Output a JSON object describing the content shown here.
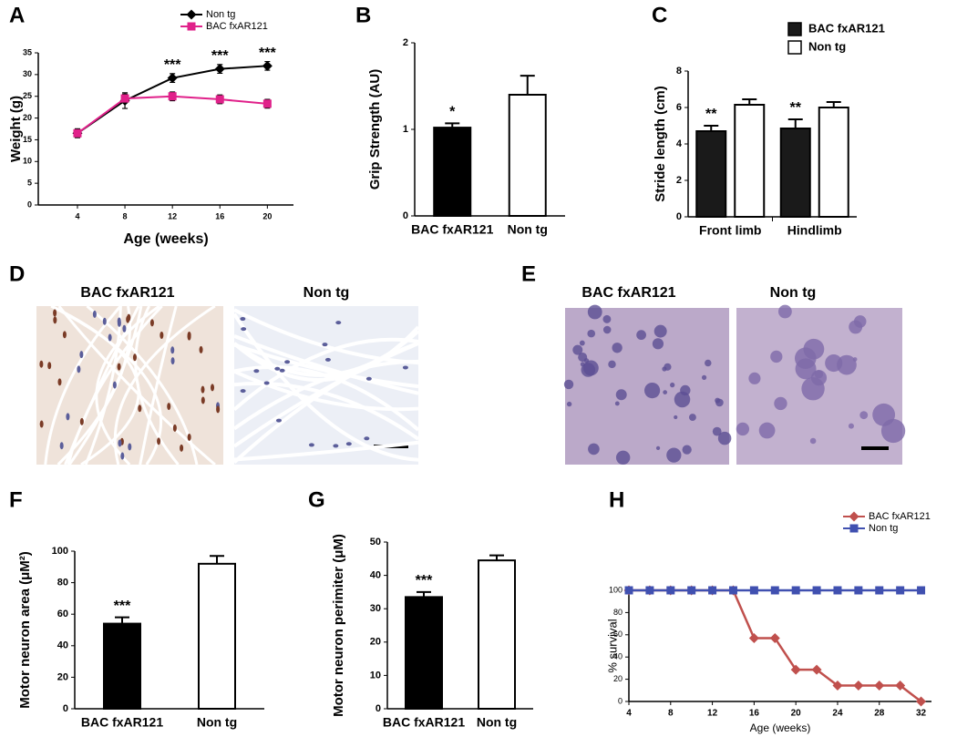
{
  "chart_data": [
    {
      "panel": "A",
      "type": "line",
      "xlabel": "Age (weeks)",
      "ylabel": "Weight (g)",
      "x": [
        4,
        8,
        12,
        16,
        20
      ],
      "xlim": [
        0.7,
        22.2
      ],
      "xticks": [
        4,
        8,
        12,
        16,
        20
      ],
      "ylim": [
        0,
        35
      ],
      "yticks": [
        0,
        5,
        10,
        15,
        20,
        25,
        30,
        35
      ],
      "series": [
        {
          "name": "Non tg",
          "color": "#000000",
          "marker": "diamond",
          "values": [
            16.5,
            24,
            29.2,
            31.3,
            32
          ],
          "errors": [
            1,
            1.8,
            1,
            1,
            1
          ]
        },
        {
          "name": "BAC fxAR121",
          "color": "#e0218a",
          "marker": "square",
          "values": [
            16.5,
            24.5,
            25,
            24.3,
            23.3
          ],
          "errors": [
            1,
            1,
            1,
            1,
            1
          ]
        }
      ],
      "significance": [
        null,
        null,
        "***",
        "***",
        "***"
      ]
    },
    {
      "panel": "B",
      "type": "bar",
      "ylabel": "Grip Strength (AU)",
      "categories": [
        "BAC fxAR121",
        "Non tg"
      ],
      "values": [
        1.02,
        1.4
      ],
      "errors": [
        0.05,
        0.22
      ],
      "colors": [
        "#000000",
        "#ffffff"
      ],
      "significance": [
        "*",
        null
      ],
      "ylim": [
        0,
        2
      ],
      "yticks": [
        0,
        1,
        2
      ]
    },
    {
      "panel": "C",
      "type": "bar",
      "ylabel": "Stride length (cm)",
      "categories": [
        "Front limb",
        "Hindlimb"
      ],
      "series": [
        {
          "name": "BAC fxAR121",
          "color": "#1a1a1a",
          "values": [
            4.7,
            4.85
          ],
          "errors": [
            0.3,
            0.5
          ],
          "significance": [
            "**",
            "**"
          ]
        },
        {
          "name": "Non tg",
          "color": "#ffffff",
          "values": [
            6.15,
            6.0
          ],
          "errors": [
            0.3,
            0.3
          ]
        }
      ],
      "ylim": [
        0,
        8
      ],
      "yticks": [
        0,
        2,
        4,
        6,
        8
      ]
    },
    {
      "panel": "F",
      "type": "bar",
      "ylabel": "Motor neuron area (μM²)",
      "categories": [
        "BAC fxAR121",
        "Non tg"
      ],
      "values": [
        54,
        92
      ],
      "errors": [
        4,
        5
      ],
      "colors": [
        "#000000",
        "#ffffff"
      ],
      "significance": [
        "***",
        null
      ],
      "ylim": [
        0,
        100
      ],
      "yticks": [
        0,
        20,
        40,
        60,
        80,
        100
      ]
    },
    {
      "panel": "G",
      "type": "bar",
      "ylabel": "Motor neuron perimiter (μM)",
      "categories": [
        "BAC fxAR121",
        "Non tg"
      ],
      "values": [
        33.5,
        44.5
      ],
      "errors": [
        1.5,
        1.5
      ],
      "colors": [
        "#000000",
        "#ffffff"
      ],
      "significance": [
        "***",
        null
      ],
      "ylim": [
        0,
        50
      ],
      "yticks": [
        0,
        10,
        20,
        30,
        40,
        50
      ]
    },
    {
      "panel": "H",
      "type": "line",
      "xlabel": "Age (weeks)",
      "ylabel": "% survival",
      "x": [
        4,
        6,
        8,
        10,
        12,
        14,
        16,
        18,
        20,
        22,
        24,
        26,
        28,
        30,
        32
      ],
      "xlim": [
        4,
        33
      ],
      "xticks": [
        4,
        8,
        12,
        16,
        20,
        24,
        28,
        32
      ],
      "ylim": [
        0,
        100
      ],
      "yticks": [
        0,
        20,
        40,
        60,
        80,
        100
      ],
      "series": [
        {
          "name": "BAC fxAR121",
          "color": "#c0504d",
          "marker": "diamond",
          "values": [
            100,
            100,
            100,
            100,
            100,
            100,
            57,
            57,
            28.6,
            28.6,
            14.3,
            14.3,
            14.3,
            14.3,
            0
          ]
        },
        {
          "name": "Non tg",
          "color": "#4050b0",
          "marker": "square",
          "values": [
            100,
            100,
            100,
            100,
            100,
            100,
            100,
            100,
            100,
            100,
            100,
            100,
            100,
            100,
            100
          ]
        }
      ]
    }
  ],
  "image_panels": [
    {
      "panel": "D",
      "labels": [
        "BAC fxAR121",
        "Non tg"
      ]
    },
    {
      "panel": "E",
      "labels": [
        "BAC fxAR121",
        "Non tg"
      ]
    }
  ]
}
